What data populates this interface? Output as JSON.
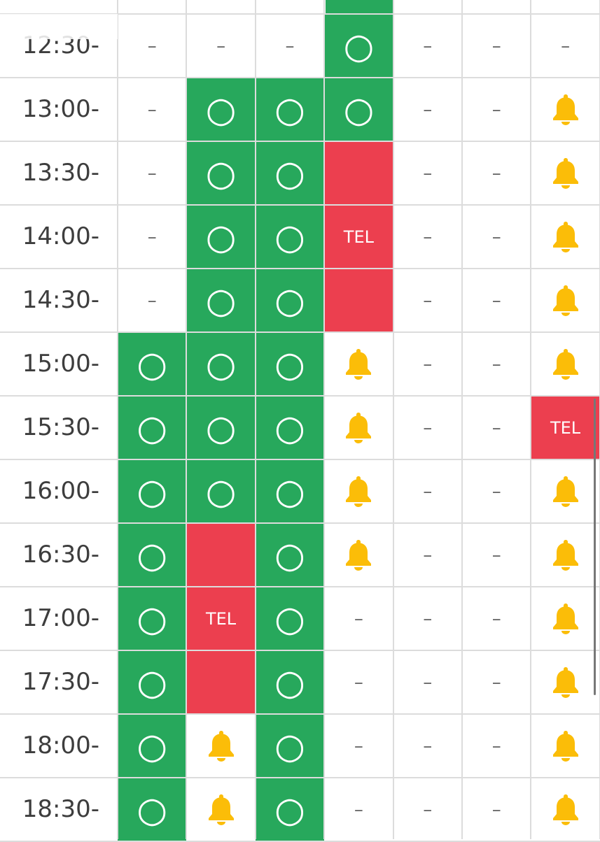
{
  "rows": [
    {
      "time": "12:30-",
      "cells": [
        "–",
        "–",
        "–",
        "○",
        "–",
        "–",
        "–"
      ]
    },
    {
      "time": "13:00-",
      "cells": [
        "–",
        "○",
        "○",
        "○",
        "–",
        "–",
        null
      ]
    },
    {
      "time": "13:30-",
      "cells": [
        "–",
        "○",
        "○",
        {
          "text": "TEL",
          "rowspan": 3
        },
        "–",
        "–",
        null
      ]
    },
    {
      "time": "14:00-",
      "cells": [
        "–",
        "○",
        "○",
        "–",
        "–",
        null
      ]
    },
    {
      "time": "14:30-",
      "cells": [
        "–",
        "○",
        "○",
        "–",
        "–",
        null
      ]
    },
    {
      "time": "15:00-",
      "cells": [
        "○",
        "○",
        "○",
        null,
        "–",
        "–",
        null
      ]
    },
    {
      "time": "15:30-",
      "cells": [
        "○",
        "○",
        "○",
        null,
        "–",
        "–",
        {
          "text": "TEL",
          "rowspan": 1
        }
      ]
    },
    {
      "time": "16:00-",
      "cells": [
        "○",
        "○",
        "○",
        null,
        "–",
        "–",
        null
      ]
    },
    {
      "time": "16:30-",
      "cells": [
        "○",
        {
          "text": "TEL",
          "rowspan": 3
        },
        "○",
        null,
        "–",
        "–",
        null
      ]
    },
    {
      "time": "17:00-",
      "cells": [
        "○",
        "○",
        "–",
        "–",
        "–",
        null
      ]
    },
    {
      "time": "17:30-",
      "cells": [
        "○",
        "○",
        "–",
        "–",
        "–",
        null
      ]
    },
    {
      "time": "18:00-",
      "cells": [
        "○",
        null,
        "○",
        "–",
        "–",
        "–",
        null
      ]
    },
    {
      "time": "18:30-",
      "cells": [
        "○",
        null,
        "○",
        "–",
        "–",
        "–",
        null
      ]
    }
  ]
}
